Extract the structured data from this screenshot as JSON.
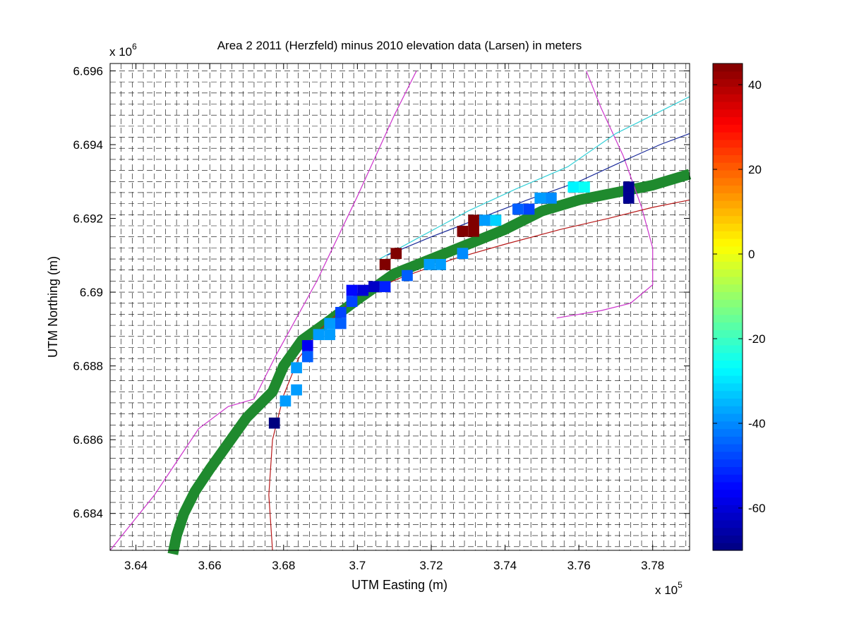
{
  "chart_data": {
    "type": "scatter",
    "title": "Area 2 2011 (Herzfeld) minus 2010 elevation data (Larsen) in meters",
    "xlabel": "UTM Easting (m)",
    "ylabel": "UTM Northing (m)",
    "x_multiplier": "x 10",
    "x_exponent": "5",
    "y_multiplier": "x 10",
    "y_exponent": "6",
    "xlim": [
      363300,
      379000
    ],
    "ylim": [
      6683000,
      6696200
    ],
    "xticks": [
      364000,
      366000,
      368000,
      370000,
      372000,
      374000,
      376000,
      378000
    ],
    "xtick_labels": [
      "3.64",
      "3.66",
      "3.68",
      "3.7",
      "3.72",
      "3.74",
      "3.76",
      "3.78"
    ],
    "yticks": [
      6684000,
      6686000,
      6688000,
      6690000,
      6692000,
      6694000,
      6696000
    ],
    "ytick_labels": [
      "6.684",
      "6.686",
      "6.688",
      "6.69",
      "6.692",
      "6.694",
      "6.696"
    ],
    "grid": true,
    "colorbar": {
      "clim": [
        -70,
        45
      ],
      "ticks": [
        -60,
        -40,
        -20,
        0,
        20,
        40
      ],
      "tick_labels": [
        "-60",
        "-40",
        "-20",
        "0",
        "20",
        "40"
      ],
      "colormap": "jet"
    },
    "grid_spacing": [
      300,
      300
    ],
    "track_color": "#1f8a2e",
    "track": [
      [
        365000,
        6682900
      ],
      [
        365100,
        6683400
      ],
      [
        365300,
        6684000
      ],
      [
        365600,
        6684600
      ],
      [
        366000,
        6685200
      ],
      [
        366500,
        6685900
      ],
      [
        367000,
        6686600
      ],
      [
        367700,
        6687300
      ],
      [
        368000,
        6688000
      ],
      [
        368500,
        6688700
      ],
      [
        369200,
        6689200
      ],
      [
        370000,
        6689800
      ],
      [
        371000,
        6690500
      ],
      [
        372000,
        6690900
      ],
      [
        373000,
        6691300
      ],
      [
        374000,
        6691700
      ],
      [
        375000,
        6692200
      ],
      [
        376000,
        6692500
      ],
      [
        377000,
        6692700
      ],
      [
        378000,
        6692900
      ],
      [
        379000,
        6693200
      ]
    ],
    "cells": [
      {
        "x": 367600,
        "y": 6686300,
        "v": -70
      },
      {
        "x": 367900,
        "y": 6686900,
        "v": -38
      },
      {
        "x": 368200,
        "y": 6687200,
        "v": -38
      },
      {
        "x": 368200,
        "y": 6687800,
        "v": -38
      },
      {
        "x": 368500,
        "y": 6688100,
        "v": -45
      },
      {
        "x": 368500,
        "y": 6688400,
        "v": -57
      },
      {
        "x": 368800,
        "y": 6688700,
        "v": -38
      },
      {
        "x": 369100,
        "y": 6688700,
        "v": -38
      },
      {
        "x": 369100,
        "y": 6689000,
        "v": -38
      },
      {
        "x": 369400,
        "y": 6689000,
        "v": -45
      },
      {
        "x": 369400,
        "y": 6689300,
        "v": -48
      },
      {
        "x": 369700,
        "y": 6689600,
        "v": -48
      },
      {
        "x": 369700,
        "y": 6689900,
        "v": -55
      },
      {
        "x": 370000,
        "y": 6689900,
        "v": -60
      },
      {
        "x": 370300,
        "y": 6690000,
        "v": -62
      },
      {
        "x": 370600,
        "y": 6690000,
        "v": -52
      },
      {
        "x": 370600,
        "y": 6690600,
        "v": 45
      },
      {
        "x": 370900,
        "y": 6690900,
        "v": 45
      },
      {
        "x": 371200,
        "y": 6690300,
        "v": -45
      },
      {
        "x": 371800,
        "y": 6690600,
        "v": -38
      },
      {
        "x": 372100,
        "y": 6690600,
        "v": -38
      },
      {
        "x": 372700,
        "y": 6690900,
        "v": -40
      },
      {
        "x": 372700,
        "y": 6691500,
        "v": 45
      },
      {
        "x": 373000,
        "y": 6691500,
        "v": 45
      },
      {
        "x": 373000,
        "y": 6691800,
        "v": 45
      },
      {
        "x": 373300,
        "y": 6691800,
        "v": -38
      },
      {
        "x": 373600,
        "y": 6691800,
        "v": -32
      },
      {
        "x": 374200,
        "y": 6692100,
        "v": -45
      },
      {
        "x": 374500,
        "y": 6692100,
        "v": -48
      },
      {
        "x": 374800,
        "y": 6692400,
        "v": -38
      },
      {
        "x": 375100,
        "y": 6692400,
        "v": -40
      },
      {
        "x": 375700,
        "y": 6692700,
        "v": -28
      },
      {
        "x": 376000,
        "y": 6692700,
        "v": -26
      },
      {
        "x": 377200,
        "y": 6692400,
        "v": -68
      },
      {
        "x": 377200,
        "y": 6692700,
        "v": -68
      }
    ],
    "lines": [
      {
        "color": "#cc33cc",
        "points": [
          [
            363300,
            6683000
          ],
          [
            364500,
            6684500
          ],
          [
            365700,
            6686300
          ],
          [
            366500,
            6686900
          ],
          [
            367200,
            6687100
          ],
          [
            367800,
            6688300
          ],
          [
            368900,
            6690300
          ],
          [
            370000,
            6692600
          ],
          [
            371000,
            6694800
          ],
          [
            371600,
            6696000
          ]
        ]
      },
      {
        "color": "#cc33cc",
        "points": [
          [
            376200,
            6696000
          ],
          [
            376600,
            6695000
          ],
          [
            377200,
            6693700
          ],
          [
            377700,
            6692300
          ],
          [
            378000,
            6691200
          ],
          [
            378000,
            6690200
          ],
          [
            377400,
            6689700
          ],
          [
            376600,
            6689500
          ],
          [
            375400,
            6689300
          ]
        ]
      },
      {
        "color": "#33d0d8",
        "points": [
          [
            370600,
            6690900
          ],
          [
            371700,
            6691500
          ],
          [
            373000,
            6692200
          ],
          [
            374300,
            6692800
          ],
          [
            375700,
            6693400
          ],
          [
            377000,
            6694300
          ],
          [
            378000,
            6694800
          ],
          [
            379000,
            6695300
          ]
        ]
      },
      {
        "color": "#1a2a9a",
        "points": [
          [
            370800,
            6691000
          ],
          [
            372000,
            6691500
          ],
          [
            373300,
            6692000
          ],
          [
            374600,
            6692500
          ],
          [
            376000,
            6693000
          ],
          [
            377300,
            6693600
          ],
          [
            378200,
            6694000
          ],
          [
            379000,
            6694300
          ]
        ]
      },
      {
        "color": "#b81818",
        "points": [
          [
            367700,
            6683000
          ],
          [
            367600,
            6684500
          ],
          [
            367700,
            6686000
          ],
          [
            368000,
            6687200
          ],
          [
            368400,
            6688200
          ],
          [
            369000,
            6689000
          ],
          [
            370000,
            6689900
          ],
          [
            371200,
            6690400
          ],
          [
            372600,
            6690900
          ],
          [
            374000,
            6691300
          ],
          [
            375500,
            6691700
          ],
          [
            376800,
            6692000
          ],
          [
            378000,
            6692300
          ],
          [
            379000,
            6692500
          ]
        ]
      }
    ]
  }
}
